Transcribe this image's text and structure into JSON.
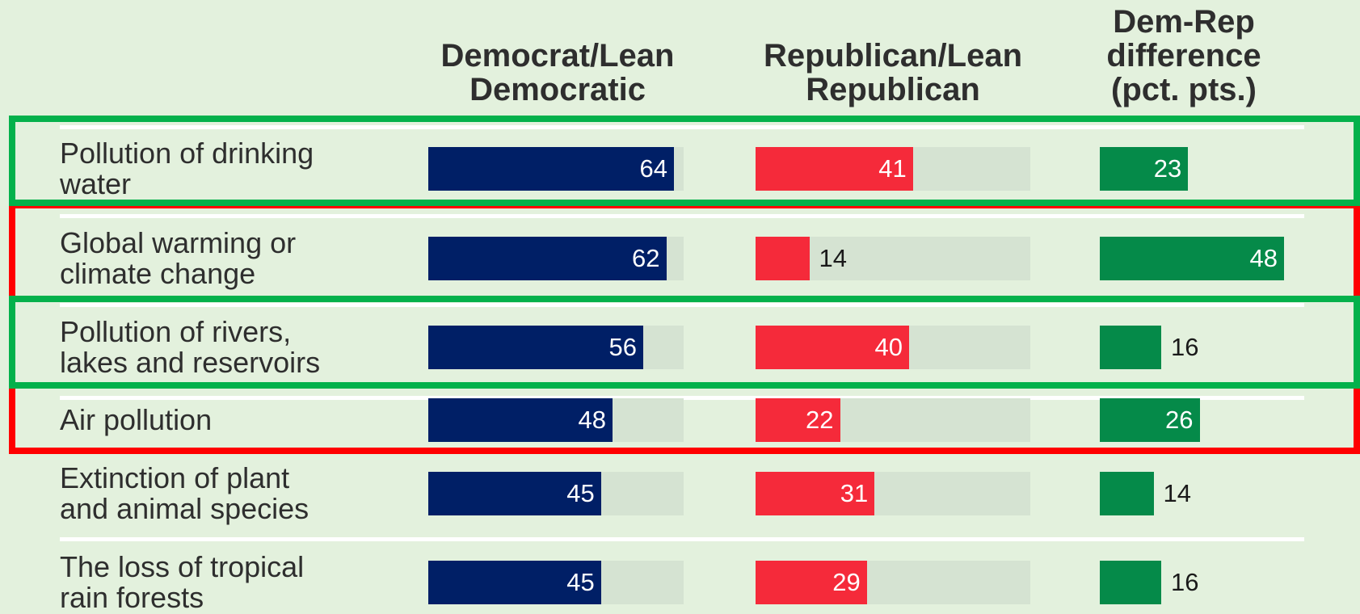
{
  "colors": {
    "background": "#e3f1dd",
    "democrat": "#001f66",
    "republican": "#f52a3a",
    "difference": "#058a49",
    "track": "#d5e3d2",
    "highlight_green": "#04b14b",
    "highlight_red": "#ff0000"
  },
  "chart_data": {
    "type": "bar",
    "columns": [
      {
        "key": "dem",
        "label": "Democrat/Lean\nDemocratic"
      },
      {
        "key": "rep",
        "label": "Republican/Lean\nRepublican"
      },
      {
        "key": "diff",
        "label": "Dem-Rep\ndifference\n(pct. pts.)"
      }
    ],
    "categories": [
      "Pollution of drinking\nwater",
      "Global warming or\nclimate change",
      "Pollution of rivers,\nlakes and reservoirs",
      "Air pollution",
      "Extinction of plant\nand animal species",
      "The loss of tropical\nrain forests"
    ],
    "series": [
      {
        "key": "dem",
        "name": "Democrat/Lean Democratic",
        "values": [
          64,
          62,
          56,
          48,
          45,
          45
        ]
      },
      {
        "key": "rep",
        "name": "Republican/Lean Republican",
        "values": [
          41,
          14,
          40,
          22,
          31,
          29
        ]
      },
      {
        "key": "diff",
        "name": "Dem-Rep difference (pct. pts.)",
        "values": [
          23,
          48,
          16,
          26,
          14,
          16
        ]
      }
    ],
    "highlights": [
      {
        "color": "green",
        "rows": [
          0
        ]
      },
      {
        "color": "red",
        "rows": [
          1,
          3
        ]
      },
      {
        "color": "green",
        "rows": [
          2
        ]
      }
    ]
  }
}
